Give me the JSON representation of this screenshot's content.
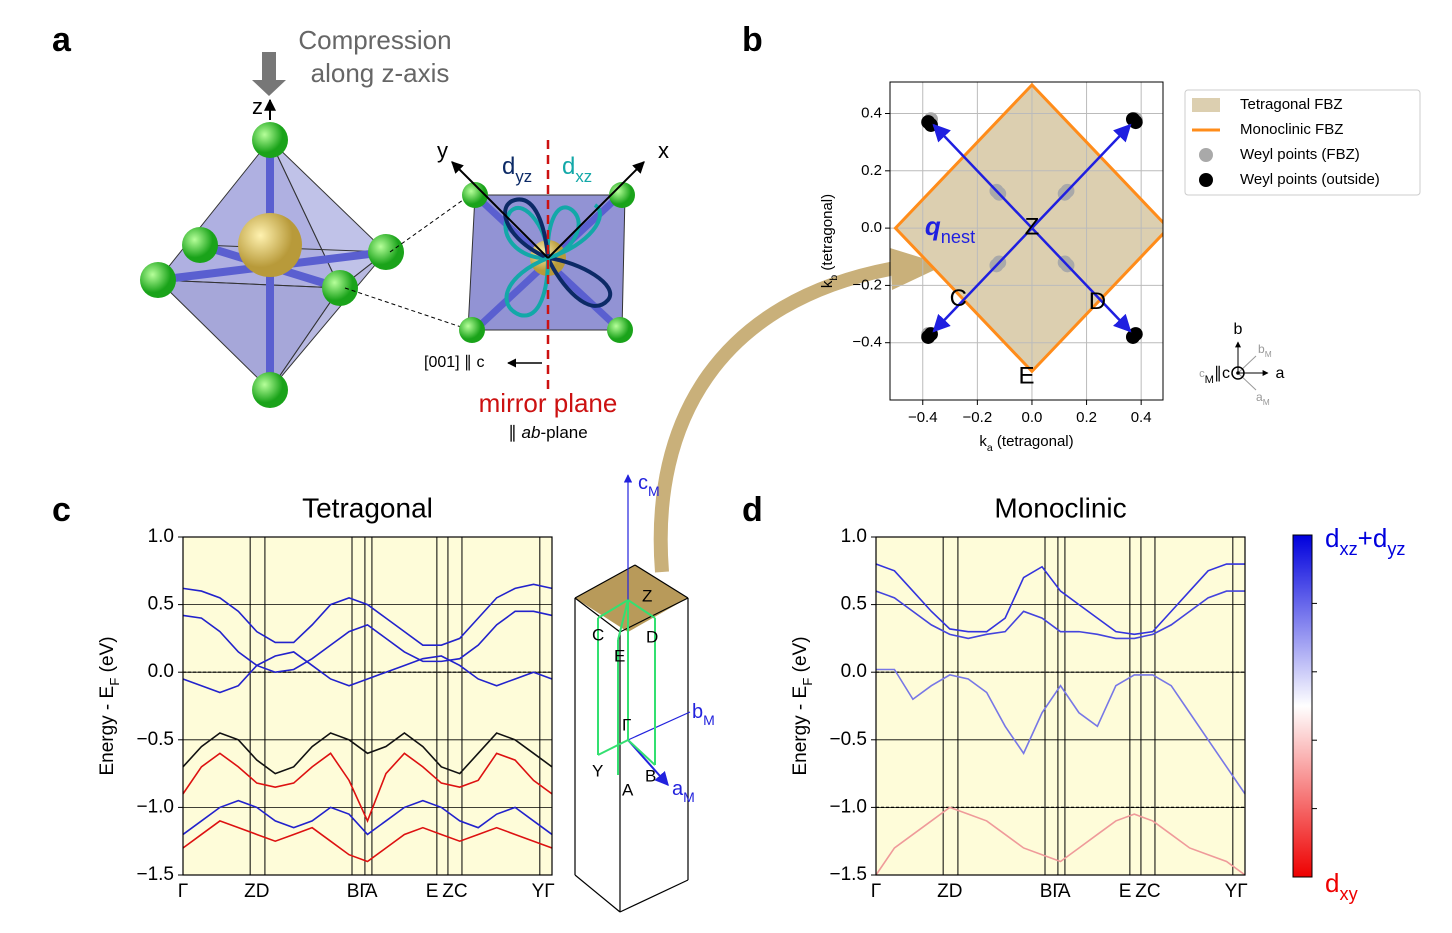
{
  "panel_labels": [
    "a",
    "b",
    "c",
    "d"
  ],
  "panel_a": {
    "compression": [
      "Compression",
      "along z-axis"
    ],
    "axis_z": "z",
    "axis_y": "y",
    "axis_x": "x",
    "dyz": [
      "d",
      "yz"
    ],
    "dxz": [
      "d",
      "xz"
    ],
    "direction": "[001] ∥ c",
    "mirror": "mirror plane",
    "mirror_sub": [
      "∥ ",
      "ab",
      "-plane"
    ]
  },
  "cell_diagram": {
    "cM": [
      "c",
      "M"
    ],
    "bM": [
      "b",
      "M"
    ],
    "aM": [
      "a",
      "M"
    ],
    "points": [
      "Z",
      "C",
      "E",
      "D",
      "Γ",
      "Y",
      "B",
      "A"
    ]
  },
  "chart_data": [
    {
      "type": "scatter",
      "xlabel": [
        "k",
        "a",
        " (tetragonal)"
      ],
      "ylabel": [
        "k",
        "b",
        " (tetragonal)"
      ],
      "xlim": [
        -0.52,
        0.48
      ],
      "ylim": [
        -0.6,
        0.51
      ],
      "xticks": [
        {
          "value": -0.4,
          "label": "−0.4"
        },
        {
          "value": -0.2,
          "label": "−0.2"
        },
        {
          "value": 0,
          "label": "0.0"
        },
        0.2,
        0.4
      ],
      "yticks": [
        {
          "value": -0.4,
          "label": "−0.4"
        },
        {
          "value": -0.2,
          "label": "−0.2"
        },
        {
          "value": 0,
          "label": "0.0"
        },
        0.2,
        0.4
      ],
      "grid": true,
      "regions": [
        {
          "name": "Tetragonal FBZ",
          "color": "#dccfb0",
          "style": "fill",
          "vertices": [
            [
              0,
              0.5
            ],
            [
              0.5,
              0
            ],
            [
              0,
              -0.5
            ],
            [
              -0.5,
              0
            ]
          ]
        },
        {
          "name": "Monoclinic FBZ",
          "color": "#ff8c1a",
          "style": "line",
          "vertices": [
            [
              0,
              0.5
            ],
            [
              0.5,
              0
            ],
            [
              0,
              -0.5
            ],
            [
              -0.5,
              0
            ]
          ]
        }
      ],
      "series": [
        {
          "name": "Weyl points (FBZ)",
          "color": "#a9a9a9",
          "x": [
            -0.13,
            -0.12,
            0.13,
            0.12,
            -0.13,
            -0.12,
            0.13,
            0.12,
            -0.37,
            0.38,
            -0.38,
            0.38
          ],
          "y": [
            0.13,
            0.12,
            0.13,
            0.12,
            -0.13,
            -0.12,
            -0.13,
            -0.12,
            0.38,
            0.38,
            -0.37,
            -0.37
          ]
        },
        {
          "name": "Weyl points (outside)",
          "color": "#000000",
          "x": [
            -0.38,
            -0.37,
            0.37,
            0.38,
            -0.38,
            -0.37,
            0.38,
            0.37
          ],
          "y": [
            0.37,
            0.36,
            0.38,
            0.37,
            -0.38,
            -0.37,
            -0.37,
            -0.38
          ]
        }
      ],
      "arrows": [
        [
          -0.36,
          0.36,
          0.36,
          -0.36
        ],
        [
          0.36,
          0.36,
          -0.36,
          -0.36
        ]
      ],
      "arrow_color": "#1f1fe0",
      "arrow_label": {
        "text": [
          "q",
          "nest"
        ],
        "x": -0.3,
        "y": 0
      },
      "point_labels": [
        {
          "text": "Z",
          "x": 0,
          "y": 0
        },
        {
          "text": "C",
          "x": -0.27,
          "y": -0.25
        },
        {
          "text": "D",
          "x": 0.24,
          "y": -0.26
        },
        {
          "text": "E",
          "x": -0.02,
          "y": -0.52
        }
      ],
      "compass": {
        "b": "b",
        "a": "a",
        "c": [
          "c",
          "M",
          "∥c"
        ],
        "bM": [
          "b",
          "M"
        ],
        "aM": [
          "a",
          "M"
        ]
      }
    },
    {
      "type": "bands",
      "title": "Tetragonal",
      "ylabel": [
        "Energy - E",
        "F",
        " (eV)"
      ],
      "xlim": [
        0,
        1
      ],
      "ylim": [
        -1.5,
        1.0
      ],
      "yticks": [
        {
          "value": -1.5,
          "label": "−1.5"
        },
        {
          "value": -1,
          "label": "−1.0"
        },
        {
          "value": -0.5,
          "label": "−0.5"
        },
        {
          "value": 0,
          "label": "0.0"
        },
        0.5,
        {
          "value": 1,
          "label": "1.0"
        }
      ],
      "xticks": [
        {
          "value": 0,
          "label": "Γ"
        },
        {
          "value": 0.2,
          "label": "ZD"
        },
        {
          "value": 0.475,
          "label": "BΓ"
        },
        {
          "value": 0.51,
          "label": "A"
        },
        {
          "value": 0.675,
          "label": "E"
        },
        {
          "value": 0.737,
          "label": "ZC"
        },
        {
          "value": 0.976,
          "label": "YΓ"
        }
      ],
      "kpath": [
        0,
        0.182,
        0.222,
        0.458,
        0.493,
        0.512,
        0.688,
        0.718,
        0.756,
        0.967,
        1
      ],
      "dashed": [
        0
      ],
      "background": "#fefcd9",
      "x": [
        0,
        0.05,
        0.1,
        0.15,
        0.2,
        0.25,
        0.3,
        0.35,
        0.4,
        0.45,
        0.5,
        0.55,
        0.6,
        0.65,
        0.7,
        0.75,
        0.8,
        0.85,
        0.9,
        0.95,
        1
      ],
      "series": [
        {
          "color": "#2222cc",
          "values": [
            0.62,
            0.6,
            0.55,
            0.45,
            0.3,
            0.22,
            0.22,
            0.35,
            0.5,
            0.55,
            0.5,
            0.4,
            0.3,
            0.2,
            0.2,
            0.25,
            0.4,
            0.55,
            0.62,
            0.65,
            0.62
          ]
        },
        {
          "color": "#2222cc",
          "values": [
            0.42,
            0.4,
            0.3,
            0.15,
            0.05,
            0.0,
            0.02,
            0.1,
            0.2,
            0.3,
            0.35,
            0.25,
            0.15,
            0.08,
            0.08,
            0.1,
            0.2,
            0.35,
            0.45,
            0.45,
            0.42
          ]
        },
        {
          "color": "#2222cc",
          "values": [
            -0.05,
            -0.1,
            -0.15,
            -0.1,
            0.05,
            0.12,
            0.15,
            0.05,
            -0.05,
            -0.1,
            -0.05,
            0.0,
            0.05,
            0.1,
            0.12,
            0.05,
            -0.05,
            -0.1,
            -0.05,
            0.0,
            -0.05
          ]
        },
        {
          "color": "#111111",
          "values": [
            -0.7,
            -0.55,
            -0.45,
            -0.5,
            -0.65,
            -0.75,
            -0.7,
            -0.55,
            -0.45,
            -0.5,
            -0.6,
            -0.55,
            -0.45,
            -0.55,
            -0.7,
            -0.75,
            -0.6,
            -0.45,
            -0.5,
            -0.6,
            -0.7
          ]
        },
        {
          "color": "#dd1111",
          "values": [
            -0.9,
            -0.7,
            -0.6,
            -0.7,
            -0.82,
            -0.85,
            -0.82,
            -0.7,
            -0.6,
            -0.8,
            -1.1,
            -0.75,
            -0.6,
            -0.7,
            -0.82,
            -0.85,
            -0.8,
            -0.6,
            -0.65,
            -0.8,
            -0.9
          ]
        },
        {
          "color": "#2222cc",
          "values": [
            -1.2,
            -1.1,
            -1.0,
            -0.95,
            -1.0,
            -1.1,
            -1.15,
            -1.1,
            -1.0,
            -1.05,
            -1.2,
            -1.1,
            -1.0,
            -0.95,
            -1.0,
            -1.1,
            -1.15,
            -1.05,
            -1.0,
            -1.1,
            -1.2
          ]
        },
        {
          "color": "#dd1111",
          "values": [
            -1.3,
            -1.2,
            -1.1,
            -1.15,
            -1.2,
            -1.25,
            -1.2,
            -1.15,
            -1.25,
            -1.35,
            -1.4,
            -1.3,
            -1.2,
            -1.15,
            -1.2,
            -1.25,
            -1.2,
            -1.15,
            -1.2,
            -1.25,
            -1.3
          ]
        }
      ]
    },
    {
      "type": "bands",
      "title": "Monoclinic",
      "ylabel": [
        "Energy - E",
        "F",
        " (eV)"
      ],
      "xlim": [
        0,
        1
      ],
      "ylim": [
        -1.5,
        1.0
      ],
      "yticks": [
        {
          "value": -1.5,
          "label": "−1.5"
        },
        {
          "value": -1,
          "label": "−1.0"
        },
        {
          "value": -0.5,
          "label": "−0.5"
        },
        {
          "value": 0,
          "label": "0.0"
        },
        0.5,
        {
          "value": 1,
          "label": "1.0"
        }
      ],
      "xticks": [
        {
          "value": 0,
          "label": "Γ"
        },
        {
          "value": 0.2,
          "label": "ZD"
        },
        {
          "value": 0.475,
          "label": "BΓ"
        },
        {
          "value": 0.51,
          "label": "A"
        },
        {
          "value": 0.675,
          "label": "E"
        },
        {
          "value": 0.737,
          "label": "ZC"
        },
        {
          "value": 0.976,
          "label": "YΓ"
        }
      ],
      "kpath": [
        0,
        0.182,
        0.222,
        0.458,
        0.493,
        0.512,
        0.688,
        0.718,
        0.756,
        0.967,
        1
      ],
      "dashed": [
        0,
        -1
      ],
      "background": "#fefcd9",
      "x": [
        0,
        0.05,
        0.1,
        0.15,
        0.2,
        0.25,
        0.3,
        0.35,
        0.4,
        0.45,
        0.5,
        0.55,
        0.6,
        0.65,
        0.7,
        0.75,
        0.8,
        0.85,
        0.9,
        0.95,
        1
      ],
      "series": [
        {
          "color": "#3333dd",
          "values": [
            0.8,
            0.75,
            0.6,
            0.45,
            0.32,
            0.3,
            0.3,
            0.4,
            0.7,
            0.78,
            0.6,
            0.5,
            0.4,
            0.3,
            0.28,
            0.3,
            0.45,
            0.6,
            0.75,
            0.8,
            0.8
          ]
        },
        {
          "color": "#4444dd",
          "values": [
            0.6,
            0.55,
            0.45,
            0.35,
            0.28,
            0.25,
            0.28,
            0.3,
            0.45,
            0.4,
            0.3,
            0.3,
            0.28,
            0.25,
            0.25,
            0.28,
            0.35,
            0.45,
            0.55,
            0.6,
            0.6
          ]
        },
        {
          "color": "#7777e6",
          "values": [
            0.02,
            0.02,
            -0.2,
            -0.1,
            -0.02,
            -0.05,
            -0.15,
            -0.4,
            -0.6,
            -0.3,
            -0.1,
            -0.3,
            -0.4,
            -0.1,
            -0.02,
            -0.02,
            -0.1,
            -0.3,
            -0.5,
            -0.7,
            -0.9
          ]
        },
        {
          "color": "#ef9a9a",
          "values": [
            -1.5,
            -1.3,
            -1.2,
            -1.1,
            -1.0,
            -1.05,
            -1.1,
            -1.2,
            -1.3,
            -1.35,
            -1.4,
            -1.3,
            -1.2,
            -1.1,
            -1.05,
            -1.1,
            -1.2,
            -1.3,
            -1.35,
            -1.4,
            -1.5
          ]
        }
      ],
      "colorbar": {
        "top": [
          "d",
          "xz",
          "+d",
          "yz"
        ],
        "bottom": [
          "d",
          "xy"
        ],
        "colors": [
          "#0000dd",
          "#ffffff",
          "#ee0000"
        ]
      }
    }
  ]
}
